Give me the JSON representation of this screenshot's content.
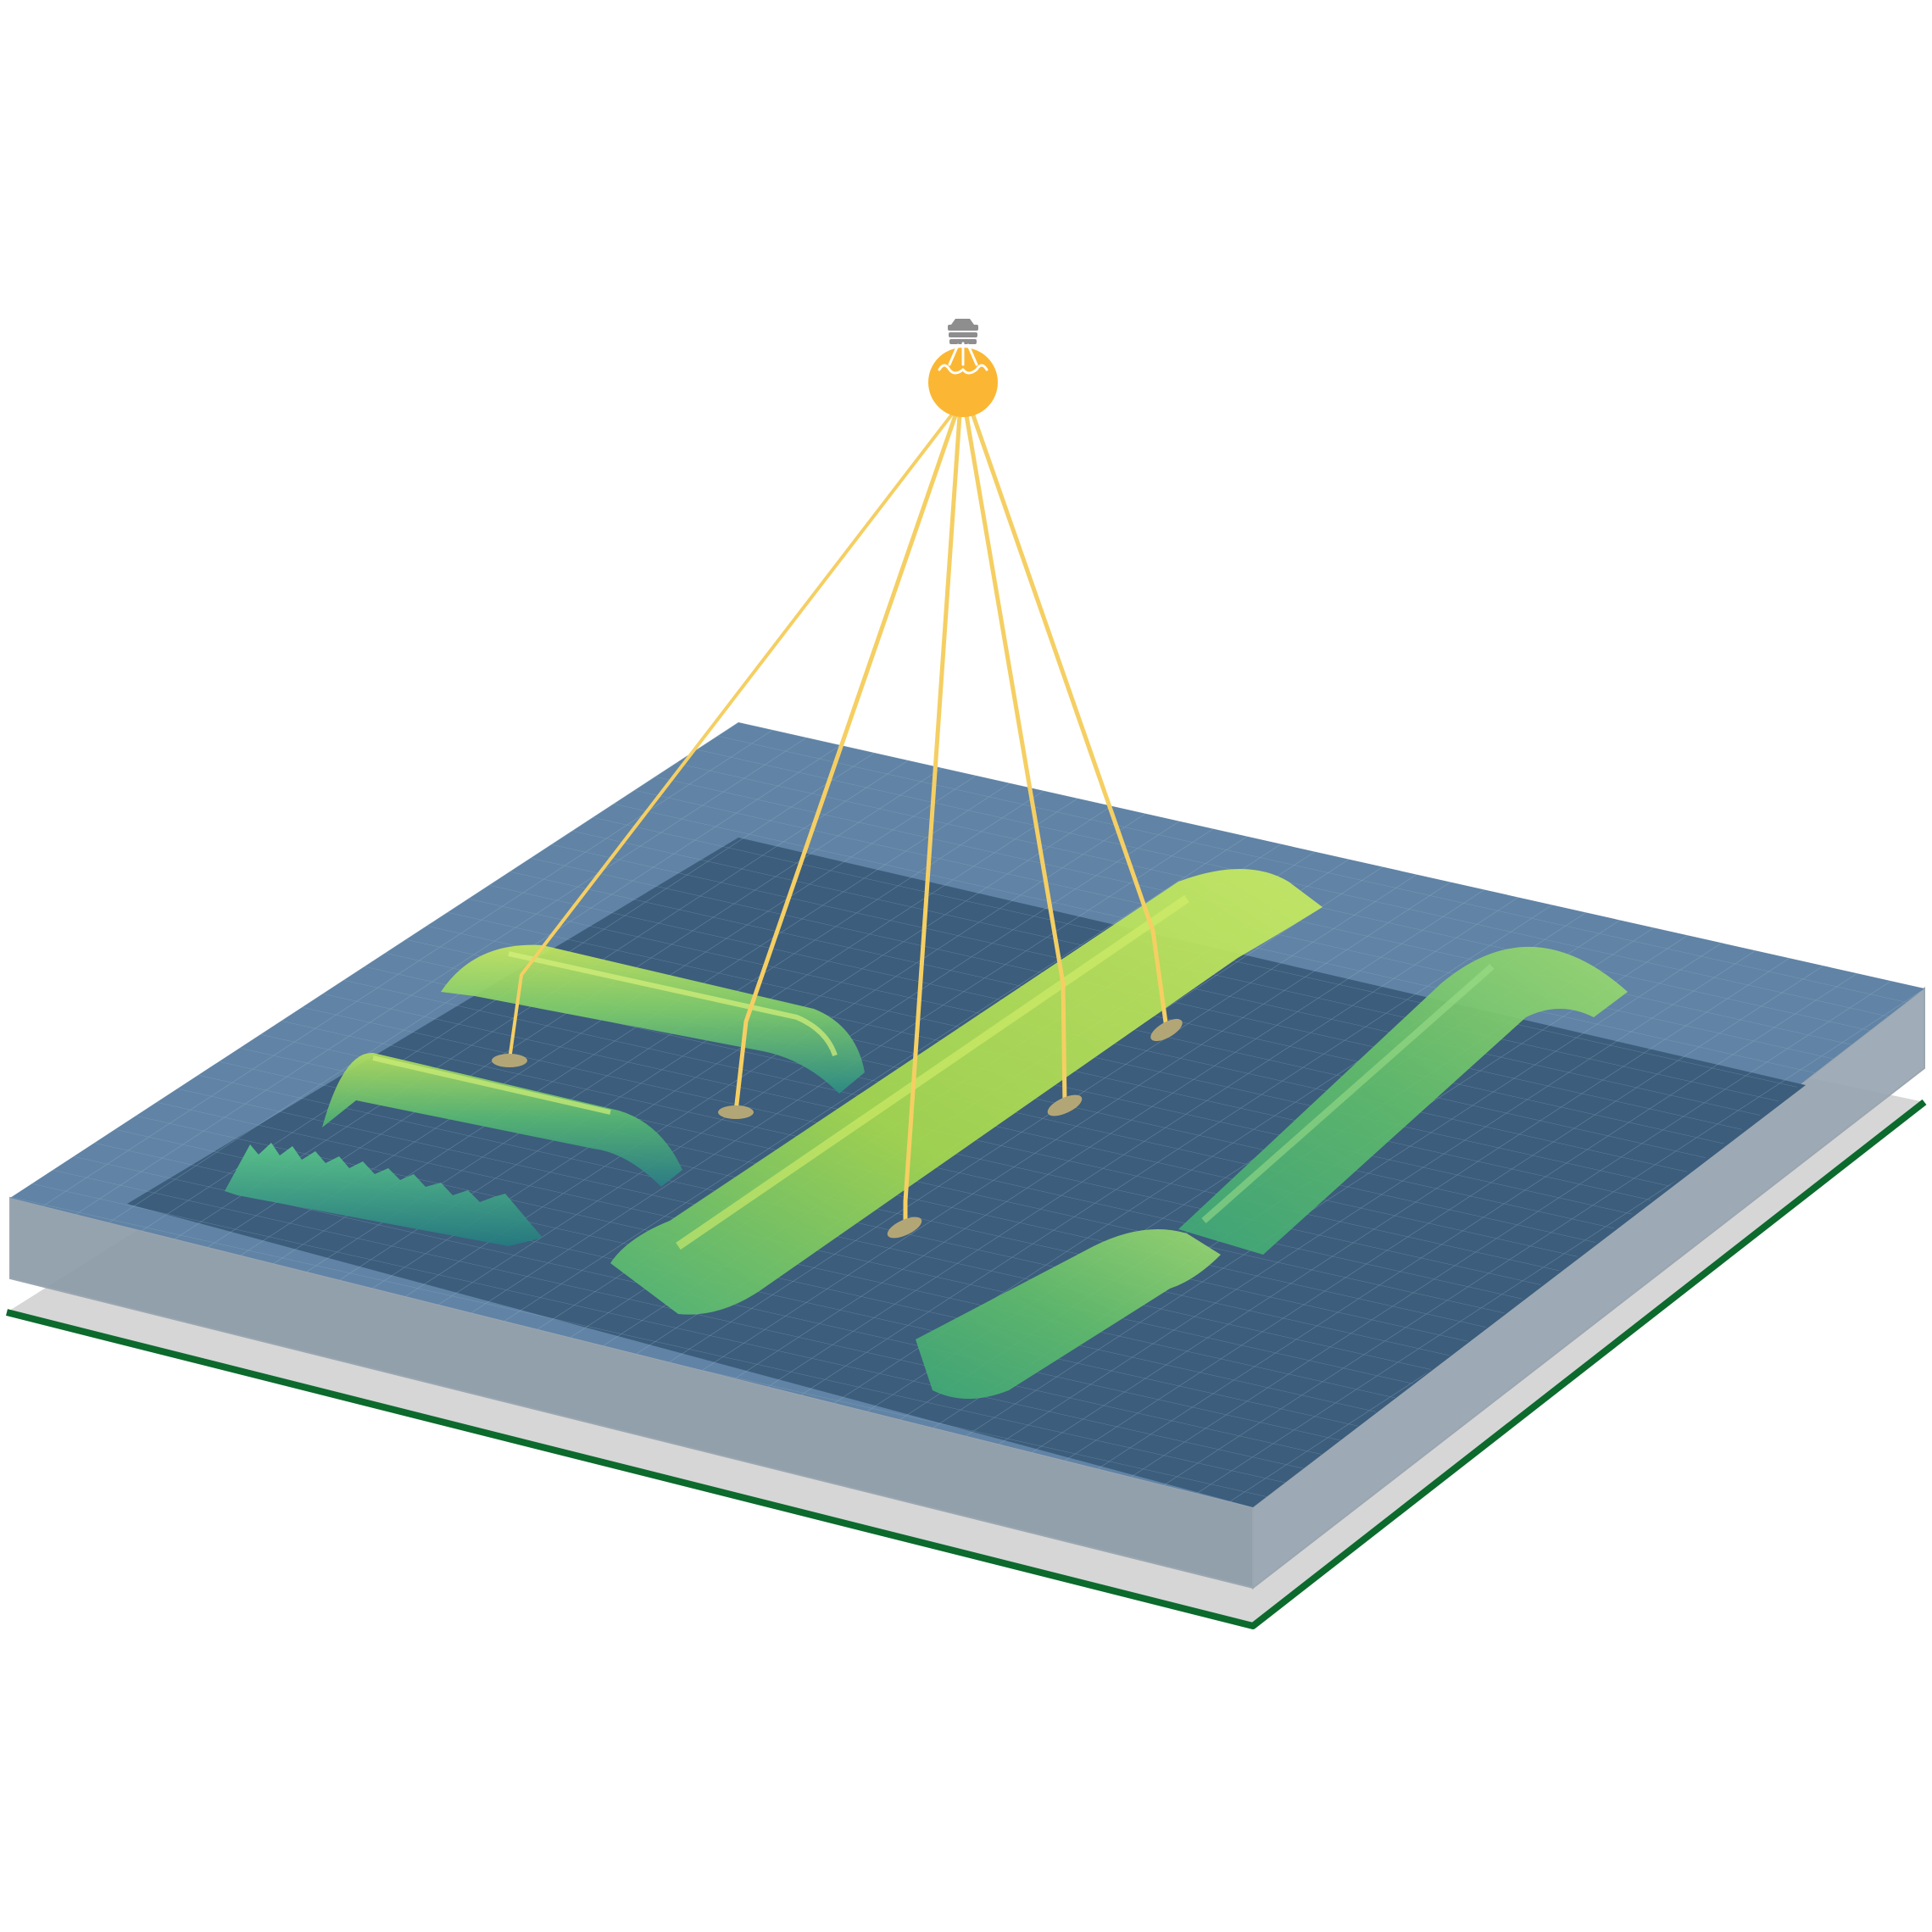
{
  "diagram": {
    "title": "",
    "colors": {
      "background": "#ffffff",
      "bulb": "#fbb733",
      "bulb_cap": "#8e8e8e",
      "filament": "#ffffff",
      "ray": "#f5cf63",
      "spot": "#b3a676",
      "slab_top": "#6183a5",
      "slab_inner": "#3c5d7c",
      "slab_side_front": "#8c9ba8",
      "slab_side_right": "#98a6b2",
      "substrate": "#d6d6d6",
      "substrate_edge": "#0c6a2d",
      "ridge_yellow": "#c6e85a",
      "ridge_green": "#5fbf73",
      "ridge_teal": "#2a8d83",
      "grid_line": "#8fb3c8"
    },
    "icons": [
      "light-bulb-icon"
    ],
    "elements": {
      "light_source": "light-bulb",
      "rays": 5,
      "light_spots": 5,
      "ridges": 6,
      "layers": [
        "transparent-slab",
        "substrate"
      ]
    }
  }
}
